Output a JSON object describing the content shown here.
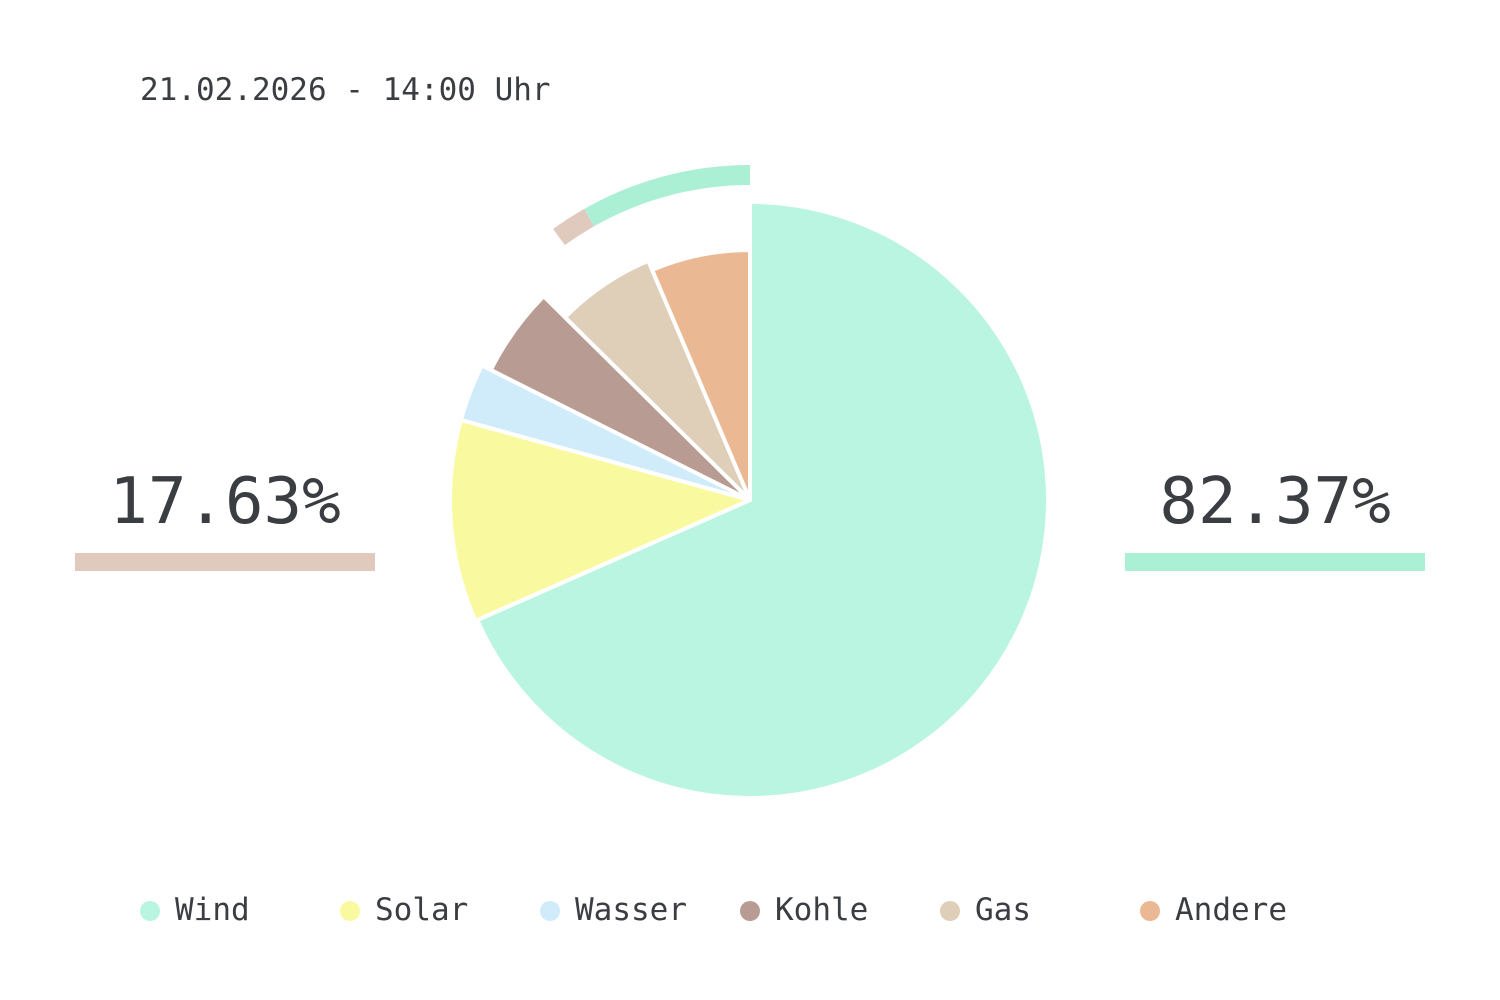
{
  "header": {
    "timestamp": "21.02.2026 - 14:00 Uhr"
  },
  "summary": {
    "left": {
      "value": "17.63%",
      "color": "#e0cabd"
    },
    "right": {
      "value": "82.37%",
      "color": "#abf0d4"
    }
  },
  "chart_data": {
    "type": "pie",
    "start": "12 o'clock",
    "direction": "clockwise",
    "slices": [
      {
        "name": "Wind",
        "value": 68.4,
        "color": "#b9f5e0"
      },
      {
        "name": "Solar",
        "value": 10.9,
        "color": "#f9fa9f"
      },
      {
        "name": "Wasser",
        "value": 3.1,
        "color": "#d0ecfb"
      },
      {
        "name": "Kohle",
        "value": 5.0,
        "color": "#b89c93"
      },
      {
        "name": "Gas",
        "value": 6.2,
        "color": "#dfcfb9"
      },
      {
        "name": "Andere",
        "value": 6.4,
        "color": "#ebb894"
      }
    ],
    "outer_ring": [
      {
        "value": 17.63,
        "color": "#e0cabd"
      },
      {
        "value": 82.37,
        "color": "#abf0d4"
      }
    ],
    "outer_ring_visible_fraction": 0.1,
    "legend_position": "bottom"
  }
}
